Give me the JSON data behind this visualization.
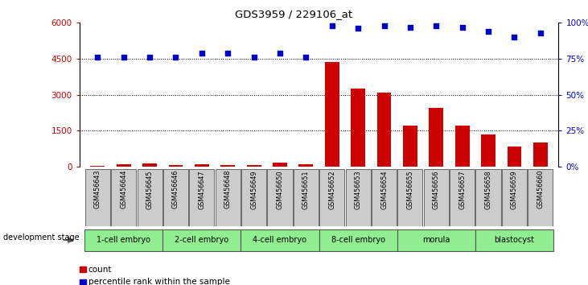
{
  "title": "GDS3959 / 229106_at",
  "samples": [
    "GSM456643",
    "GSM456644",
    "GSM456645",
    "GSM456646",
    "GSM456647",
    "GSM456648",
    "GSM456649",
    "GSM456650",
    "GSM456651",
    "GSM456652",
    "GSM456653",
    "GSM456654",
    "GSM456655",
    "GSM456656",
    "GSM456657",
    "GSM456658",
    "GSM456659",
    "GSM456660"
  ],
  "counts": [
    50,
    120,
    150,
    60,
    100,
    80,
    70,
    180,
    90,
    4350,
    3250,
    3100,
    1700,
    2450,
    1700,
    1350,
    850,
    1000
  ],
  "percentile_ranks": [
    76,
    76,
    76,
    76,
    79,
    79,
    76,
    79,
    76,
    98,
    96,
    98,
    97,
    98,
    97,
    94,
    90,
    93
  ],
  "bar_color": "#cc0000",
  "dot_color": "#0000cc",
  "ylim_left": [
    0,
    6000
  ],
  "ylim_right": [
    0,
    100
  ],
  "yticks_left": [
    0,
    1500,
    3000,
    4500,
    6000
  ],
  "ytick_labels_left": [
    "0",
    "1500",
    "3000",
    "4500",
    "6000"
  ],
  "yticks_right": [
    0,
    25,
    50,
    75,
    100
  ],
  "ytick_labels_right": [
    "0%",
    "25%",
    "50%",
    "75%",
    "100%"
  ],
  "groups": [
    {
      "label": "1-cell embryo",
      "start": 0,
      "end": 2
    },
    {
      "label": "2-cell embryo",
      "start": 3,
      "end": 5
    },
    {
      "label": "4-cell embryo",
      "start": 6,
      "end": 8
    },
    {
      "label": "8-cell embryo",
      "start": 9,
      "end": 11
    },
    {
      "label": "morula",
      "start": 12,
      "end": 14
    },
    {
      "label": "blastocyst",
      "start": 15,
      "end": 17
    }
  ],
  "group_color": "#90ee90",
  "group_border": "#555555",
  "sample_box_color": "#cccccc",
  "sample_box_border": "#555555",
  "dev_stage_label": "development stage",
  "legend_count_label": "count",
  "legend_pct_label": "percentile rank within the sample",
  "background_color": "#ffffff",
  "bar_width": 0.55
}
